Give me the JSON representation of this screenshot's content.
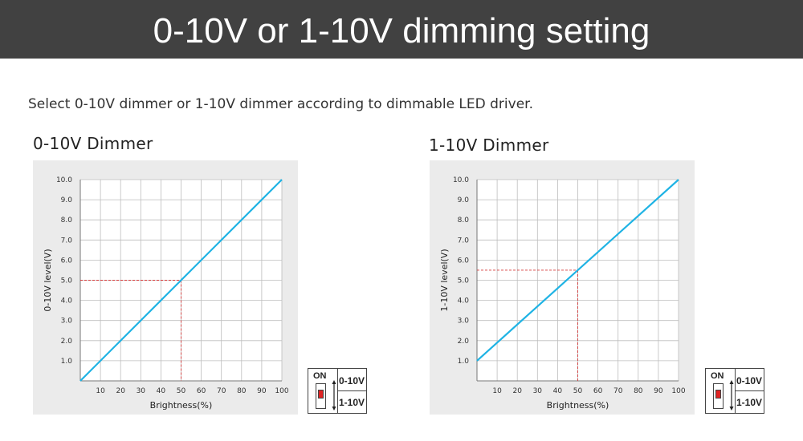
{
  "header": {
    "title": "0-10V or 1-10V dimming setting"
  },
  "intro": "Select 0-10V dimmer or 1-10V dimmer according to dimmable LED driver.",
  "colors": {
    "line": "#1fb3e4",
    "marker": "#d63a3a",
    "banner": "#414141",
    "chart_bg": "#ebebeb",
    "grid": "#bdbdbd"
  },
  "chart_data": [
    {
      "type": "line",
      "title": "0-10V Dimmer",
      "xlabel": "Brightness(%)",
      "ylabel": "0-10V level(V)",
      "x_ticks": [
        "10",
        "20",
        "30",
        "40",
        "50",
        "60",
        "70",
        "80",
        "90",
        "100"
      ],
      "y_ticks": [
        "1.0",
        "2.0",
        "3.0",
        "4.0",
        "5.0",
        "6.0",
        "7.0",
        "8.0",
        "9.0",
        "10.0"
      ],
      "xlim": [
        0,
        100
      ],
      "ylim": [
        0,
        10
      ],
      "grid": true,
      "series": [
        {
          "x": [
            0,
            100
          ],
          "y": [
            0,
            10
          ]
        }
      ],
      "reference_point": {
        "x": 50,
        "y": 5.0
      }
    },
    {
      "type": "line",
      "title": "1-10V Dimmer",
      "xlabel": "Brightness(%)",
      "ylabel": "1-10V level(V)",
      "x_ticks": [
        "10",
        "20",
        "30",
        "40",
        "50",
        "60",
        "70",
        "80",
        "90",
        "100"
      ],
      "y_ticks": [
        "1.0",
        "2.0",
        "3.0",
        "4.0",
        "5.0",
        "6.0",
        "7.0",
        "8.0",
        "9.0",
        "10.0"
      ],
      "xlim": [
        0,
        100
      ],
      "ylim": [
        0,
        10
      ],
      "grid": true,
      "series": [
        {
          "x": [
            0,
            100
          ],
          "y": [
            1,
            10
          ]
        }
      ],
      "reference_point": {
        "x": 50,
        "y": 5.5
      }
    }
  ],
  "switches": [
    {
      "on_label": "ON",
      "option_top": "0-10V",
      "option_bottom": "1-10V",
      "position": "bottom"
    },
    {
      "on_label": "ON",
      "option_top": "0-10V",
      "option_bottom": "1-10V",
      "position": "bottom"
    }
  ]
}
